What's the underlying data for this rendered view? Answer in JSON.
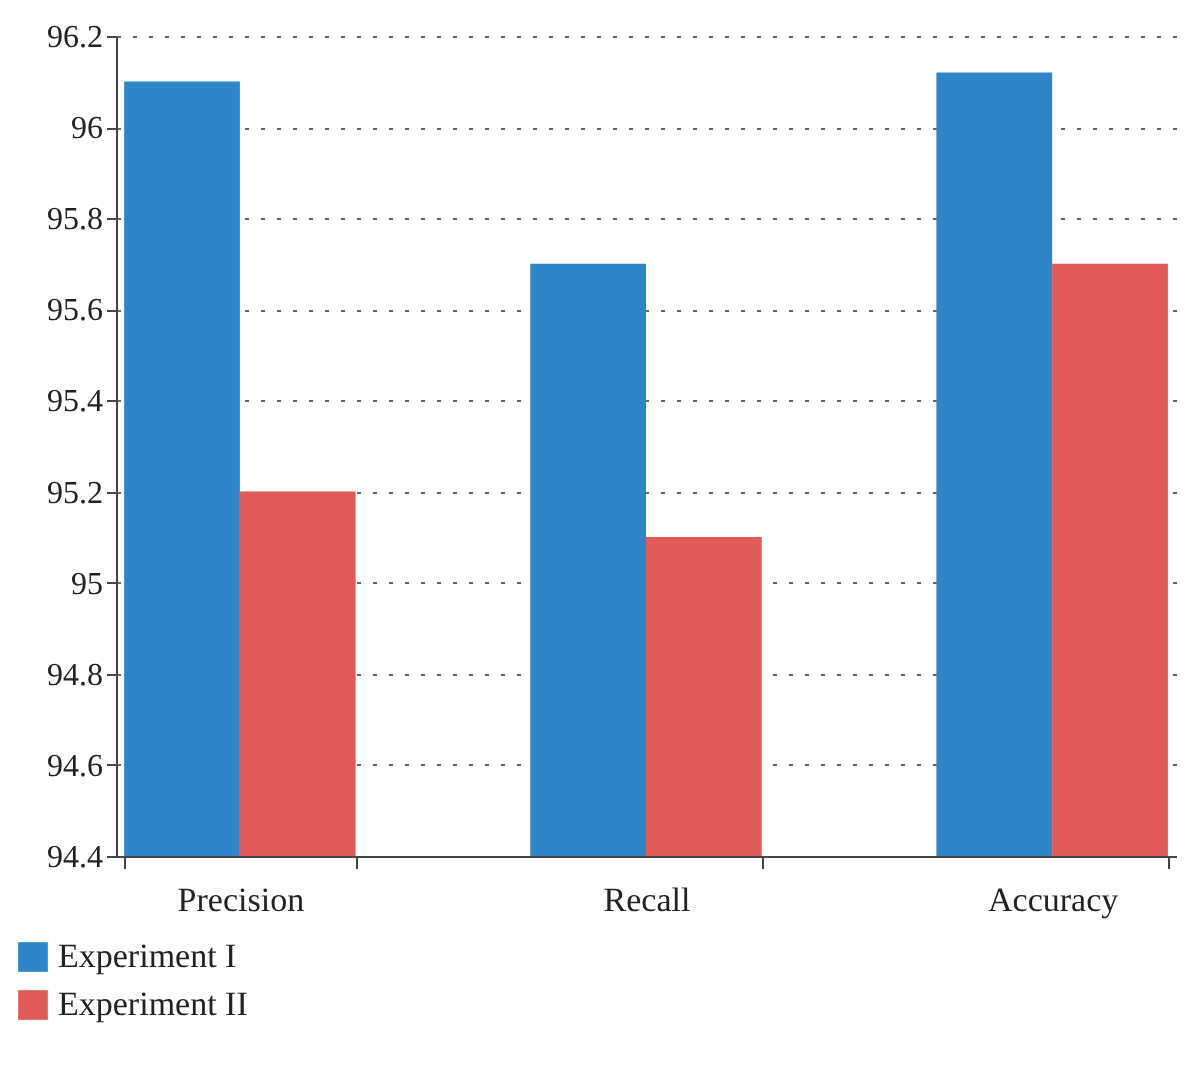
{
  "chart_data": {
    "type": "bar",
    "categories": [
      "Precision",
      "Recall",
      "Accuracy"
    ],
    "series": [
      {
        "name": "Experiment I",
        "color": "#2e86c8",
        "values": [
          96.1,
          95.7,
          96.12
        ]
      },
      {
        "name": "Experiment II",
        "color": "#e05a57",
        "values": [
          95.2,
          95.1,
          95.7
        ]
      }
    ],
    "ylim": [
      94.4,
      96.2
    ],
    "yticks": [
      94.4,
      94.6,
      94.8,
      95,
      95.2,
      95.4,
      95.6,
      95.8,
      96,
      96.2
    ],
    "grid": "y",
    "legend": "bottom left"
  }
}
